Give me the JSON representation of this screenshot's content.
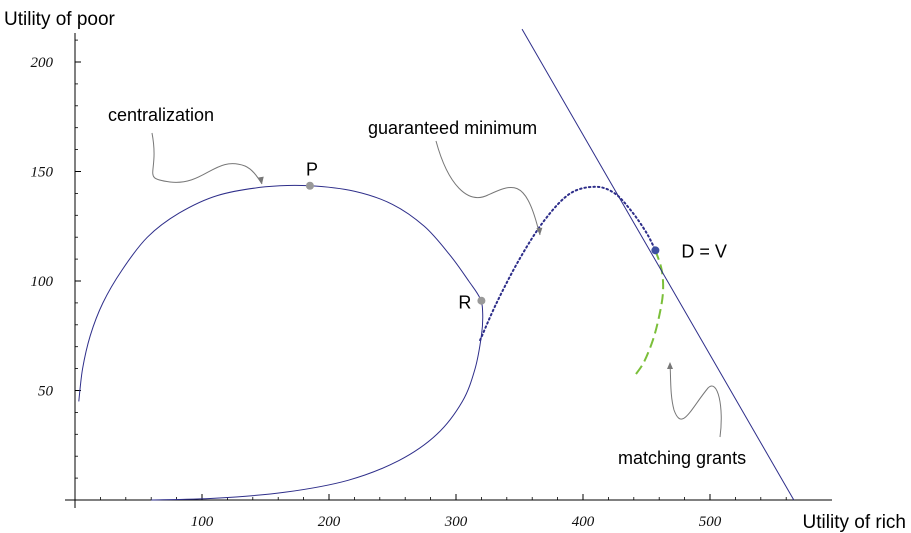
{
  "chart_data": {
    "type": "line",
    "xlabel": "Utility of rich",
    "ylabel": "Utility of poor",
    "x_ticks": [
      100,
      200,
      300,
      400,
      500
    ],
    "y_ticks": [
      50,
      100,
      150,
      200
    ],
    "xlim": [
      0,
      575
    ],
    "ylim": [
      0,
      215
    ],
    "grid": false,
    "series": [
      {
        "style": "solid",
        "color": "#2e2e8a",
        "points": [
          [
            3,
            45
          ],
          [
            6,
            60
          ],
          [
            12,
            75
          ],
          [
            22,
            90
          ],
          [
            37,
            105
          ],
          [
            57,
            120
          ],
          [
            82,
            131
          ],
          [
            112,
            139
          ],
          [
            150,
            143
          ],
          [
            185,
            143.5
          ],
          [
            220,
            141
          ],
          [
            250,
            135
          ],
          [
            275,
            125
          ],
          [
            295,
            112
          ],
          [
            310,
            100
          ],
          [
            319,
            92
          ],
          [
            321,
            85
          ],
          [
            320,
            75
          ],
          [
            315,
            60
          ],
          [
            305,
            45
          ],
          [
            285,
            30
          ],
          [
            255,
            18
          ],
          [
            215,
            9
          ],
          [
            165,
            3.5
          ],
          [
            110,
            0.8
          ],
          [
            60,
            0
          ]
        ]
      },
      {
        "style": "dotted",
        "color": "#2e2e8a",
        "points": [
          [
            319,
            73
          ],
          [
            332,
            90
          ],
          [
            350,
            110
          ],
          [
            370,
            128
          ],
          [
            390,
            140
          ],
          [
            410,
            143
          ],
          [
            425,
            140
          ],
          [
            438,
            132
          ],
          [
            450,
            122
          ],
          [
            457,
            114
          ]
        ]
      },
      {
        "style": "dashed",
        "color": "#7bbf3a",
        "points": [
          [
            457,
            114
          ],
          [
            462,
            105
          ],
          [
            463,
            95
          ],
          [
            460,
            84
          ],
          [
            455,
            73
          ],
          [
            448,
            63
          ],
          [
            441,
            57
          ]
        ]
      },
      {
        "style": "solid",
        "color": "#2e2e8a",
        "points": [
          [
            352,
            215
          ],
          [
            566,
            0
          ]
        ]
      }
    ],
    "points": [
      {
        "label": "P",
        "x": 185,
        "y": 143.5,
        "color": "#999999"
      },
      {
        "label": "R",
        "x": 320,
        "y": 91,
        "color": "#999999"
      },
      {
        "label": "D = V",
        "x": 457,
        "y": 114,
        "color": "#3d4fa0"
      }
    ],
    "annotations": [
      {
        "text": "centralization",
        "target": [
          145,
          143
        ]
      },
      {
        "text": "guaranteed minimum",
        "target": [
          354,
          122
        ]
      },
      {
        "text": "matching grants",
        "target": [
          453,
          65
        ]
      }
    ]
  }
}
